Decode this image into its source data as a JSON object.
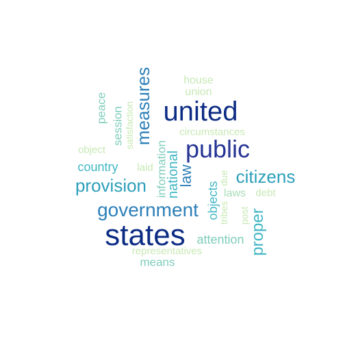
{
  "colors": {
    "background": "#ffffff",
    "lightest": "#c7e9b4",
    "light": "#a8dcb5",
    "mid_light": "#7fcdbb",
    "mid": "#41b6c4",
    "mid_dark": "#2c9fb9",
    "dark": "#225ea8",
    "darkest": "#0c2c84"
  },
  "words": [
    {
      "text": "states",
      "frequency": 100,
      "rotated": false,
      "color": "#0c2c84"
    },
    {
      "text": "united",
      "frequency": 92,
      "rotated": false,
      "color": "#0c2c84"
    },
    {
      "text": "public",
      "frequency": 80,
      "rotated": false,
      "color": "#253494"
    },
    {
      "text": "government",
      "frequency": 62,
      "rotated": false,
      "color": "#2c7fb8"
    },
    {
      "text": "citizens",
      "frequency": 58,
      "rotated": false,
      "color": "#2c9fb9"
    },
    {
      "text": "provision",
      "frequency": 58,
      "rotated": false,
      "color": "#2c9fb9"
    },
    {
      "text": "measures",
      "frequency": 58,
      "rotated": true,
      "color": "#2c7fb8"
    },
    {
      "text": "proper",
      "frequency": 50,
      "rotated": true,
      "color": "#41b6c4"
    },
    {
      "text": "law",
      "frequency": 48,
      "rotated": true,
      "color": "#2c7fb8"
    },
    {
      "text": "national",
      "frequency": 44,
      "rotated": true,
      "color": "#41b6c4"
    },
    {
      "text": "country",
      "frequency": 40,
      "rotated": false,
      "color": "#41b6c4"
    },
    {
      "text": "attention",
      "frequency": 40,
      "rotated": false,
      "color": "#7fcdbb"
    },
    {
      "text": "objects",
      "frequency": 40,
      "rotated": true,
      "color": "#41b6c4"
    },
    {
      "text": "information",
      "frequency": 36,
      "rotated": true,
      "color": "#7fcdbb"
    },
    {
      "text": "session",
      "frequency": 36,
      "rotated": true,
      "color": "#7fcdbb"
    },
    {
      "text": "means",
      "frequency": 34,
      "rotated": false,
      "color": "#7fcdbb"
    },
    {
      "text": "peace",
      "frequency": 34,
      "rotated": true,
      "color": "#7fcdbb"
    },
    {
      "text": "laws",
      "frequency": 32,
      "rotated": false,
      "color": "#a8dcb5"
    },
    {
      "text": "house",
      "frequency": 32,
      "rotated": false,
      "color": "#c7e9b4"
    },
    {
      "text": "union",
      "frequency": 32,
      "rotated": false,
      "color": "#c7e9b4"
    },
    {
      "text": "circumstances",
      "frequency": 32,
      "rotated": false,
      "color": "#c7e9b4"
    },
    {
      "text": "representatives",
      "frequency": 30,
      "rotated": false,
      "color": "#c7e9b4"
    },
    {
      "text": "debt",
      "frequency": 30,
      "rotated": false,
      "color": "#c7e9b4"
    },
    {
      "text": "object",
      "frequency": 30,
      "rotated": false,
      "color": "#c7e9b4"
    },
    {
      "text": "laid",
      "frequency": 30,
      "rotated": false,
      "color": "#c7e9b4"
    },
    {
      "text": "satisfaction",
      "frequency": 30,
      "rotated": true,
      "color": "#c7e9b4"
    },
    {
      "text": "tribes",
      "frequency": 30,
      "rotated": true,
      "color": "#c7e9b4"
    },
    {
      "text": "due",
      "frequency": 30,
      "rotated": true,
      "color": "#c7e9b4"
    },
    {
      "text": "post",
      "frequency": 30,
      "rotated": true,
      "color": "#c7e9b4"
    }
  ]
}
